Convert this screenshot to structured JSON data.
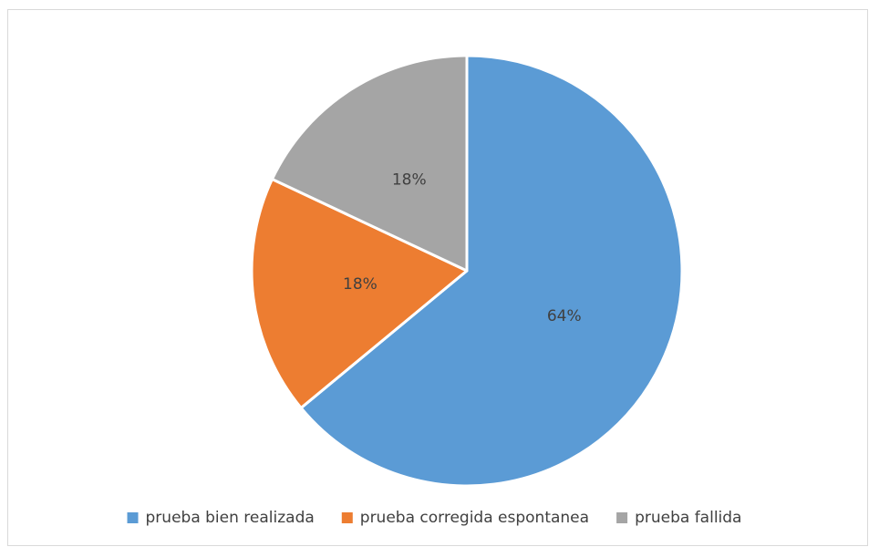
{
  "chart_data": {
    "type": "pie",
    "categories": [
      "prueba bien realizada",
      "prueba corregida espontanea",
      "prueba fallida"
    ],
    "values": [
      64,
      18,
      18
    ],
    "value_labels": [
      "64%",
      "18%",
      "18%"
    ],
    "colors": [
      "#5b9bd5",
      "#ed7d31",
      "#a5a5a5"
    ],
    "legend": "bottom"
  }
}
